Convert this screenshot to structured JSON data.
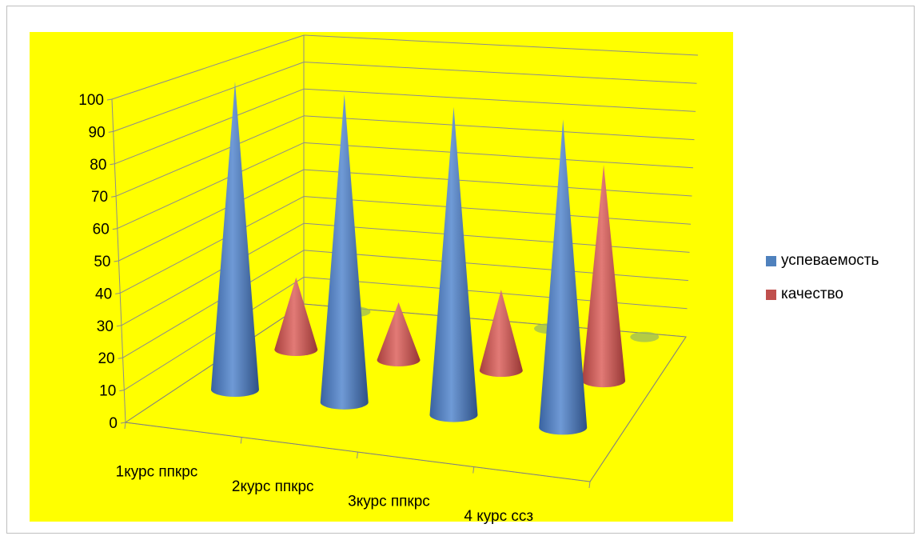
{
  "chart_data": {
    "type": "bar",
    "shape": "cone-3d",
    "categories": [
      "1курс ппкрс",
      "2курс ппкрс",
      "3курс ппкрс",
      "4 курс ссз"
    ],
    "series": [
      {
        "name": "успеваемость",
        "values": [
          100,
          100,
          100,
          100
        ],
        "color": "#4f81bd"
      },
      {
        "name": "качество",
        "values": [
          25,
          20,
          28,
          75
        ],
        "color": "#c0504d"
      },
      {
        "name": "",
        "values": [
          0,
          0,
          0,
          0
        ],
        "color": "#9bbb59"
      }
    ],
    "yticks": [
      "0",
      "10",
      "20",
      "30",
      "40",
      "50",
      "60",
      "70",
      "80",
      "90",
      "100"
    ],
    "ylim": [
      0,
      100
    ],
    "grid": true,
    "legend_position": "right",
    "plot_background": "#ffff00"
  }
}
